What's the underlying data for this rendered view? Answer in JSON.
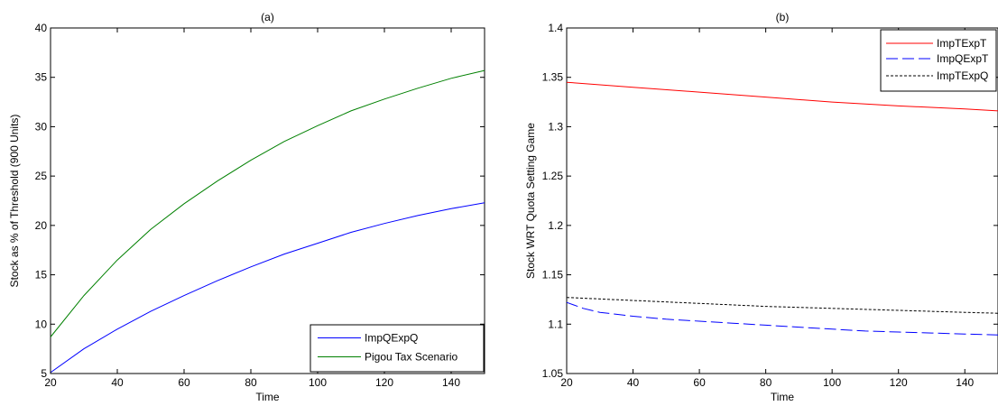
{
  "chart_data": [
    {
      "type": "line",
      "title": "(a)",
      "xlabel": "Time",
      "ylabel": "Stock as % of Threshold (900 Units)",
      "xlim": [
        20,
        150
      ],
      "ylim": [
        5,
        40
      ],
      "xticks": [
        20,
        40,
        60,
        80,
        100,
        120,
        140
      ],
      "yticks": [
        5,
        10,
        15,
        20,
        25,
        30,
        35,
        40
      ],
      "grid": false,
      "legend": "bottom-right",
      "series": [
        {
          "name": "ImpQExpQ",
          "color": "#0000ff",
          "dash": "solid",
          "x": [
            20,
            30,
            40,
            50,
            60,
            70,
            80,
            90,
            100,
            110,
            120,
            130,
            140,
            150
          ],
          "y": [
            5.1,
            7.5,
            9.5,
            11.3,
            12.9,
            14.4,
            15.8,
            17.1,
            18.2,
            19.3,
            20.2,
            21.0,
            21.7,
            22.3
          ]
        },
        {
          "name": "Pigou Tax Scenario",
          "color": "#008000",
          "dash": "solid",
          "x": [
            20,
            30,
            40,
            50,
            60,
            70,
            80,
            90,
            100,
            110,
            120,
            130,
            140,
            150
          ],
          "y": [
            8.7,
            12.9,
            16.5,
            19.6,
            22.2,
            24.5,
            26.6,
            28.5,
            30.1,
            31.6,
            32.8,
            33.9,
            34.9,
            35.7
          ]
        }
      ]
    },
    {
      "type": "line",
      "title": "(b)",
      "xlabel": "Time",
      "ylabel": "Stock WRT Quota Setting Game",
      "xlim": [
        20,
        150
      ],
      "ylim": [
        1.05,
        1.4
      ],
      "xticks": [
        20,
        40,
        60,
        80,
        100,
        120,
        140
      ],
      "yticks": [
        1.05,
        1.1,
        1.15,
        1.2,
        1.25,
        1.3,
        1.35,
        1.4
      ],
      "grid": false,
      "legend": "top-right",
      "series": [
        {
          "name": "ImpTExpT",
          "color": "#ff0000",
          "dash": "solid",
          "x": [
            20,
            40,
            60,
            80,
            100,
            120,
            140,
            150
          ],
          "y": [
            1.345,
            1.34,
            1.335,
            1.33,
            1.325,
            1.321,
            1.318,
            1.316
          ]
        },
        {
          "name": "ImpQExpT",
          "color": "#0000ff",
          "dash": "dashed",
          "x": [
            20,
            25,
            30,
            40,
            50,
            60,
            70,
            80,
            90,
            100,
            110,
            120,
            130,
            140,
            150
          ],
          "y": [
            1.122,
            1.116,
            1.112,
            1.108,
            1.105,
            1.103,
            1.101,
            1.099,
            1.097,
            1.095,
            1.093,
            1.092,
            1.091,
            1.09,
            1.089
          ]
        },
        {
          "name": "ImpTExpQ",
          "color": "#000000",
          "dash": "dotted",
          "x": [
            20,
            40,
            60,
            80,
            100,
            120,
            140,
            150
          ],
          "y": [
            1.127,
            1.124,
            1.121,
            1.118,
            1.116,
            1.114,
            1.112,
            1.111
          ]
        }
      ]
    }
  ]
}
